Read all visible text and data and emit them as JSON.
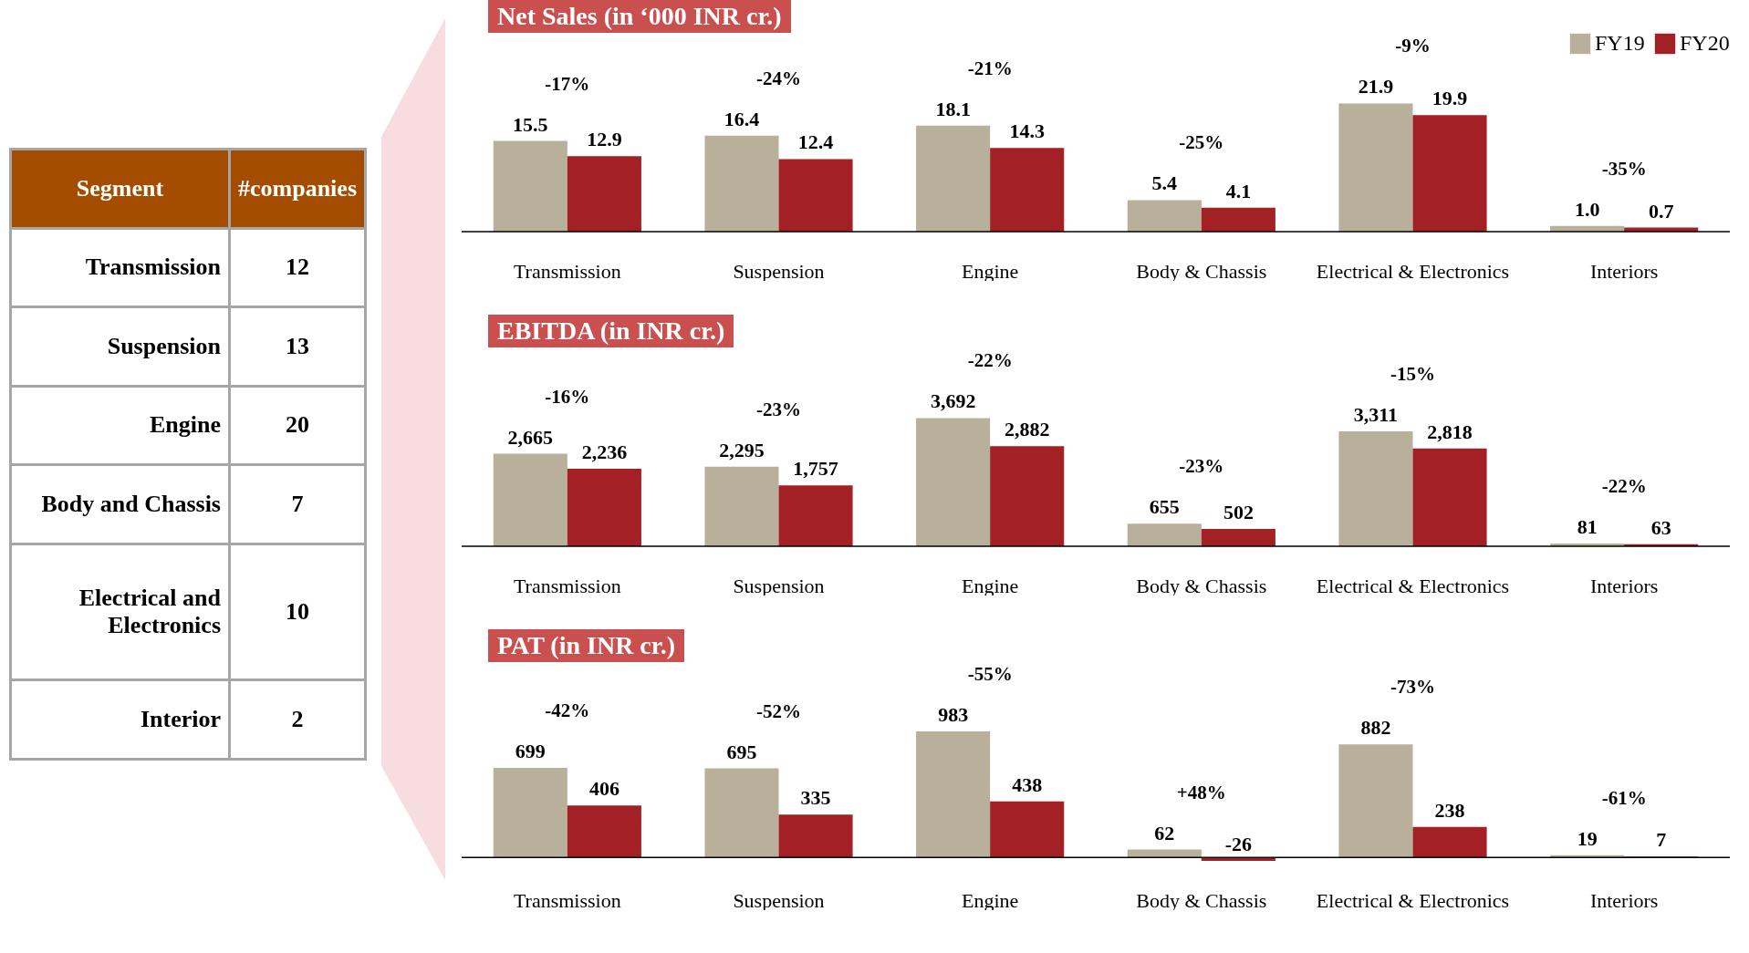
{
  "chart_data": [
    {
      "type": "other",
      "annotations": [
        "Segment",
        "#companies",
        "Transmission",
        "12",
        "Suspension",
        "13",
        "Engine",
        "20",
        "Body and Chassis",
        "7",
        "Electrical and Electronics",
        "10",
        "Interior",
        "2"
      ]
    },
    {
      "type": "bar",
      "title": "Net Sales (in ‘000 INR cr.)",
      "categories": [
        "Transmission",
        "Suspension",
        "Engine",
        "Body & Chassis",
        "Electrical & Electronics",
        "Interiors"
      ],
      "legend": "top right",
      "series": [
        {
          "name": "FY19",
          "color": "#b8b09b",
          "values": [
            15.5,
            16.4,
            18.1,
            5.4,
            21.9,
            1.0
          ],
          "value_labels": [
            "15.5",
            "16.4",
            "18.1",
            "5.4",
            "21.9",
            "1.0"
          ]
        },
        {
          "name": "FY20",
          "color": "#a32024",
          "values": [
            12.9,
            12.4,
            14.3,
            4.1,
            19.9,
            0.7
          ],
          "value_labels": [
            "12.9",
            "12.4",
            "14.3",
            "4.1",
            "19.9",
            "0.7"
          ]
        }
      ],
      "annotations": [
        "-17%",
        "-24%",
        "-21%",
        "-25%",
        "-9%",
        "-35%"
      ]
    },
    {
      "type": "bar",
      "title": "EBITDA (in INR cr.)",
      "categories": [
        "Transmission",
        "Suspension",
        "Engine",
        "Body & Chassis",
        "Electrical & Electronics",
        "Interiors"
      ],
      "series": [
        {
          "color": "#b8b09b",
          "values": [
            2665,
            2295,
            3692,
            655,
            3311,
            81
          ],
          "value_labels": [
            "2,665",
            "2,295",
            "3,692",
            "655",
            "3,311",
            "81"
          ]
        },
        {
          "color": "#a32024",
          "values": [
            2236,
            1757,
            2882,
            502,
            2818,
            63
          ],
          "value_labels": [
            "2,236",
            "1,757",
            "2,882",
            "502",
            "2,818",
            "63"
          ]
        }
      ],
      "annotations": [
        "-16%",
        "-23%",
        "-22%",
        "-23%",
        "-15%",
        "-22%"
      ]
    },
    {
      "type": "bar",
      "title": "PAT (in INR cr.)",
      "categories": [
        "Transmission",
        "Suspension",
        "Engine",
        "Body & Chassis",
        "Electrical & Electronics",
        "Interiors"
      ],
      "series": [
        {
          "color": "#b8b09b",
          "values": [
            699,
            695,
            983,
            62,
            882,
            19
          ],
          "value_labels": [
            "699",
            "695",
            "983",
            "62",
            "882",
            "19"
          ]
        },
        {
          "color": "#a32024",
          "values": [
            406,
            335,
            438,
            -26,
            238,
            7
          ],
          "value_labels": [
            "406",
            "335",
            "438",
            "-26",
            "238",
            "7"
          ]
        }
      ],
      "annotations": [
        "-42%",
        "-52%",
        "-55%",
        "+48%",
        "-73%",
        "-61%"
      ]
    }
  ]
}
